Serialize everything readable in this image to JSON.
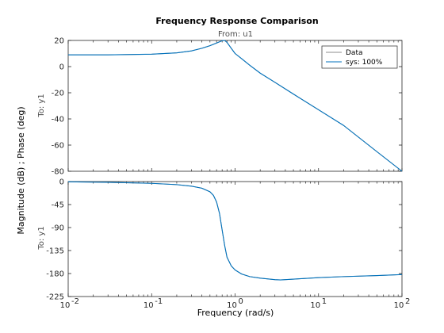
{
  "chart_data": {
    "type": "line",
    "title": "Frequency Response Comparison",
    "subtitle": "From: u1",
    "xlabel": "Frequency  (rad/s)",
    "ylabel": "Magnitude (dB) ; Phase (deg)",
    "x_scale": "log",
    "xlim": [
      0.01,
      100
    ],
    "x_ticks": [
      0.01,
      0.1,
      1,
      10,
      100
    ],
    "x_tick_labels": [
      "10",
      "10",
      "10",
      "10",
      "10"
    ],
    "x_tick_exponents": [
      "-2",
      "-1",
      "0",
      "1",
      "2"
    ],
    "panels": [
      {
        "name": "magnitude",
        "row_label": "To: y1",
        "ylim": [
          -80,
          20
        ],
        "y_ticks": [
          20,
          0,
          -20,
          -40,
          -60,
          -80
        ],
        "y_tick_labels": [
          "20",
          "0",
          "-20",
          "-40",
          "-60",
          "-80"
        ],
        "legend": {
          "location": "top-right",
          "entries": [
            "Data",
            "sys: 100%"
          ]
        },
        "series": [
          {
            "name": "Data",
            "color": "#8c8c8c",
            "x": [
              0.01,
              0.03,
              0.1,
              0.2,
              0.3,
              0.4,
              0.5,
              0.6,
              0.7,
              0.75,
              0.8,
              0.9,
              1.0,
              1.2,
              1.5,
              2,
              3,
              5,
              10,
              20,
              50,
              100
            ],
            "y": [
              9,
              9,
              9.5,
              10.5,
              12,
              14,
              16,
              18,
              19.8,
              20,
              18.5,
              14,
              10,
              6,
              1,
              -5,
              -12,
              -21,
              -33,
              -45,
              -65,
              -80
            ]
          },
          {
            "name": "sys: 100%",
            "color": "#0072bd",
            "x": [
              0.01,
              0.03,
              0.1,
              0.2,
              0.3,
              0.4,
              0.5,
              0.6,
              0.7,
              0.75,
              0.8,
              0.9,
              1.0,
              1.2,
              1.5,
              2,
              3,
              5,
              10,
              20,
              50,
              100
            ],
            "y": [
              9,
              9,
              9.5,
              10.5,
              12,
              14,
              16,
              18,
              19.8,
              20,
              18.5,
              14,
              10,
              6,
              1,
              -5,
              -12,
              -21,
              -33,
              -45,
              -65,
              -80
            ]
          }
        ]
      },
      {
        "name": "phase",
        "row_label": "To: y1",
        "ylim": [
          -225,
          0
        ],
        "y_ticks": [
          0,
          -45,
          -90,
          -135,
          -180,
          -225
        ],
        "y_tick_labels": [
          "0",
          "-45",
          "-90",
          "-135",
          "-180",
          "-225"
        ],
        "series": [
          {
            "name": "Data",
            "color": "#8c8c8c",
            "x": [
              0.01,
              0.03,
              0.1,
              0.2,
              0.3,
              0.4,
              0.5,
              0.55,
              0.6,
              0.65,
              0.7,
              0.75,
              0.8,
              0.9,
              1.0,
              1.2,
              1.5,
              2,
              3,
              3.5,
              5,
              10,
              20,
              50,
              100
            ],
            "y": [
              -0.5,
              -1.5,
              -3.5,
              -6,
              -9,
              -13,
              -20,
              -27,
              -40,
              -62,
              -95,
              -125,
              -148,
              -165,
              -173,
              -181,
              -186,
              -189,
              -192,
              -192.5,
              -191,
              -188,
              -186,
              -184,
              -182
            ]
          },
          {
            "name": "sys: 100%",
            "color": "#0072bd",
            "x": [
              0.01,
              0.03,
              0.1,
              0.2,
              0.3,
              0.4,
              0.5,
              0.55,
              0.6,
              0.65,
              0.7,
              0.75,
              0.8,
              0.9,
              1.0,
              1.2,
              1.5,
              2,
              3,
              3.5,
              5,
              10,
              20,
              50,
              100
            ],
            "y": [
              -0.5,
              -1.5,
              -3.5,
              -6,
              -9,
              -13,
              -20,
              -27,
              -40,
              -62,
              -95,
              -125,
              -148,
              -165,
              -173,
              -181,
              -186,
              -189,
              -192,
              -192.5,
              -191,
              -188,
              -186,
              -184,
              -182
            ]
          }
        ]
      }
    ]
  }
}
